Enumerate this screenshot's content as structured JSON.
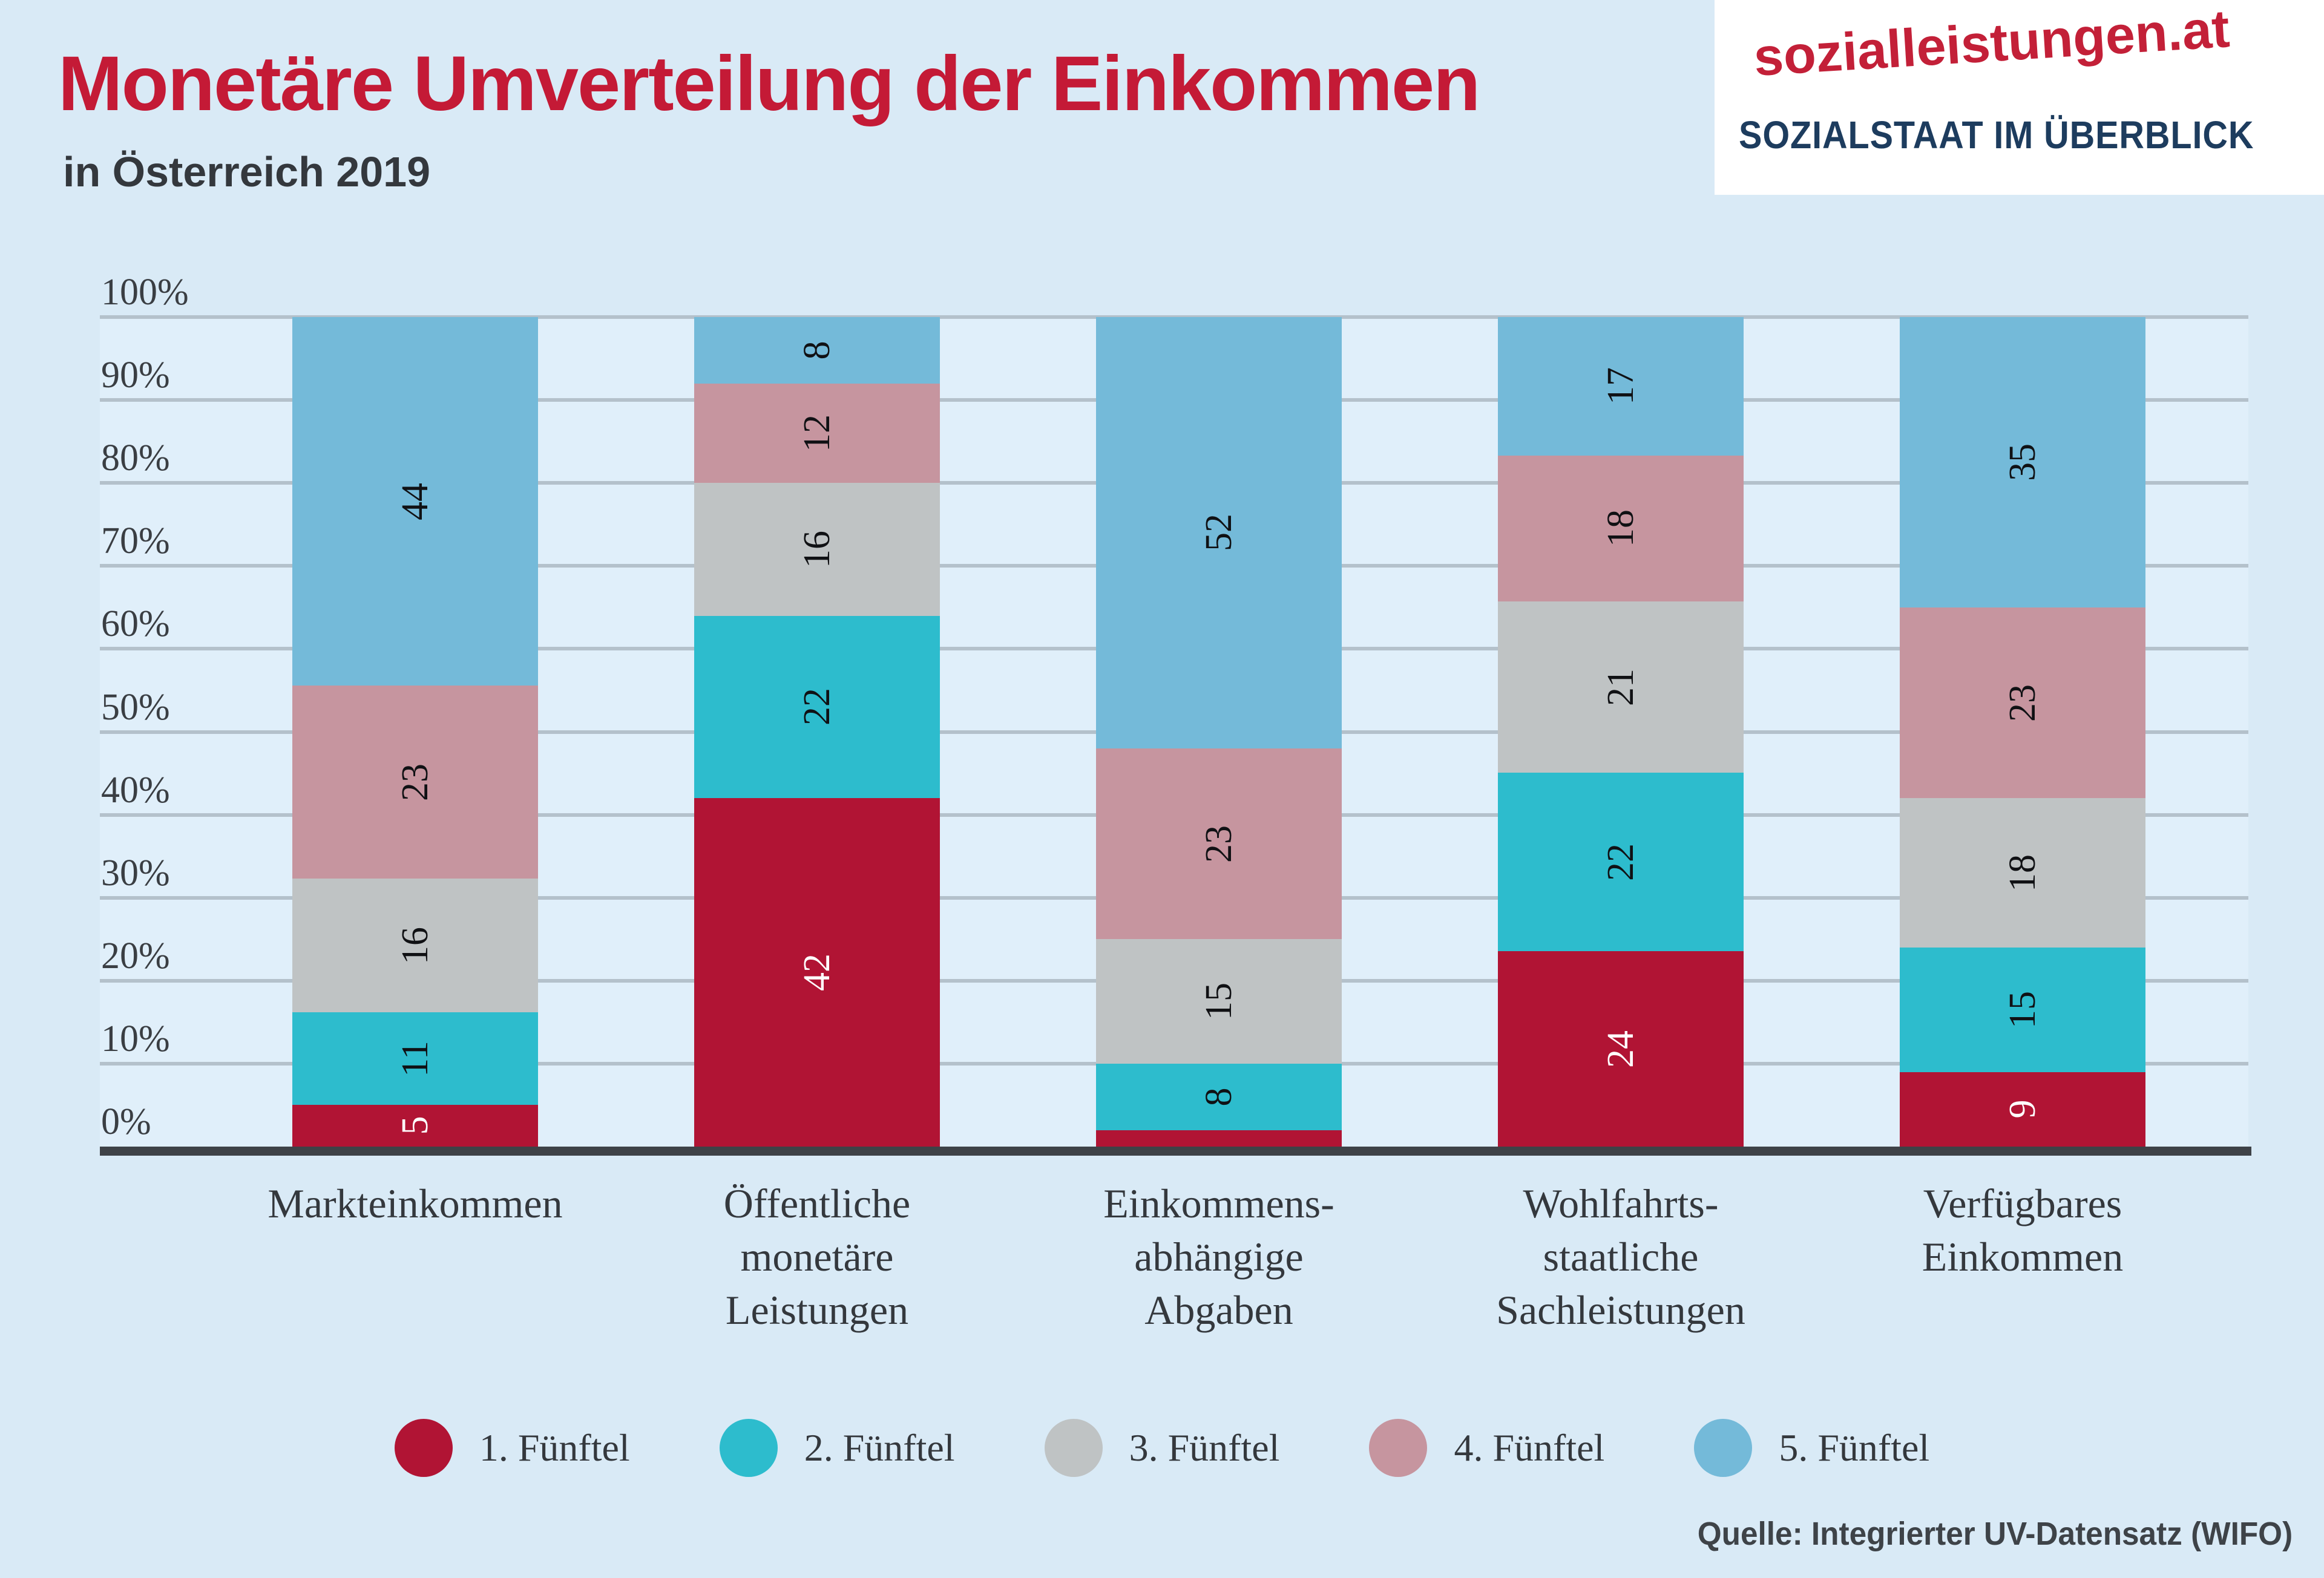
{
  "header": {
    "title": "Monetäre Umverteilung der Einkommen",
    "subtitle": "in Österreich 2019",
    "logo_line1": "sozialleistungen.at",
    "logo_line2": "SOZIALSTAAT IM ÜBERBLICK"
  },
  "source_note": "Quelle: Integrierter UV-Datensatz (WIFO)",
  "colors": {
    "background": "#d9eaf6",
    "plot_background": "#e0effa",
    "title_red": "#c41a36",
    "logo_red": "#c32038",
    "logo_navy": "#1d3c5e",
    "gridline": "#b4c1cb",
    "axis": "#3e4247",
    "text_dark": "#34383d"
  },
  "chart_data": {
    "type": "bar",
    "variant": "stacked-percent-column",
    "title": "Monetäre Umverteilung der Einkommen",
    "subtitle": "in Österreich 2019",
    "unit": "%",
    "ylim": [
      0,
      100
    ],
    "y_ticks": [
      "100%",
      "90%",
      "80%",
      "70%",
      "60%",
      "50%",
      "40%",
      "30%",
      "20%",
      "10%",
      "0%"
    ],
    "grid": true,
    "legend_position": "bottom",
    "categories": [
      "Markteinkommen",
      "Öffentliche monetäre Leistungen",
      "Einkommens-abhängige Abgaben",
      "Wohlfahrts-staatliche Sachleistungen",
      "Verfügbares Einkommen"
    ],
    "category_lines": [
      [
        "Markteinkommen"
      ],
      [
        "Öffentliche",
        "monetäre",
        "Leistungen"
      ],
      [
        "Einkommens-",
        "abhängige",
        "Abgaben"
      ],
      [
        "Wohlfahrts-",
        "staatliche",
        "Sachleistungen"
      ],
      [
        "Verfügbares",
        "Einkommen"
      ]
    ],
    "series": [
      {
        "name": "1. Fünftel",
        "color": "#b11434",
        "label_color": "#ffffff",
        "values": [
          5,
          42,
          2,
          24,
          9
        ]
      },
      {
        "name": "2. Fünftel",
        "color": "#2dbccd",
        "values": [
          11,
          22,
          8,
          22,
          15
        ]
      },
      {
        "name": "3. Fünftel",
        "color": "#bfc3c4",
        "values": [
          16,
          16,
          15,
          21,
          18
        ]
      },
      {
        "name": "4. Fünftel",
        "color": "#c6959f",
        "values": [
          23,
          12,
          23,
          18,
          23
        ]
      },
      {
        "name": "5. Fünftel",
        "color": "#74bad9",
        "values": [
          44,
          8,
          52,
          17,
          35
        ]
      }
    ],
    "value_label_min": 3,
    "notes": "Bar 3 bottom segment (1. Fünftel) is ~2% and carries no printed label; bars are drawn normalized to 100%."
  }
}
